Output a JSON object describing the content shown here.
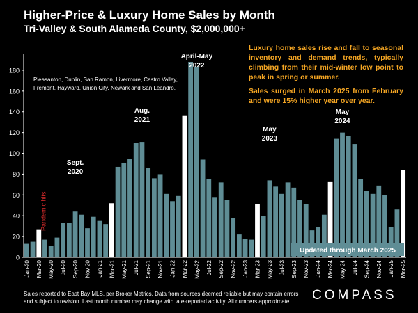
{
  "header": {
    "title": "Higher-Price & Luxury Home Sales by Month",
    "subtitle": "Tri-Valley & South Alameda County, $2,000,000+"
  },
  "callouts": {
    "seasonal": "Luxury home sales rise and fall to seasonal inventory and demand trends, typically climbing from their mid-winter low point to peak in spring or summer.",
    "march": "Sales surged in March 2025 from February and were 15% higher year over year."
  },
  "footer": {
    "note": "Sales reported to East Bay MLS, per Broker Metrics. Data from sources deemed reliable but may contain errors and subject to revision. Last month number may change with late-reported activity. All numbers approximate.",
    "logo": "COMPASS"
  },
  "colors": {
    "bar": "#5f8d95",
    "highlight": "#ffffff",
    "pandemic": "#d62b2b",
    "callout": "#f5a623",
    "updated_box": "#5f8d95"
  },
  "chart_data": {
    "type": "bar",
    "title": "Higher-Price & Luxury Home Sales by Month",
    "subtitle": "Tri-Valley & South Alameda County, $2,000,000+",
    "ylim": [
      0,
      190
    ],
    "yticks": [
      0,
      20,
      40,
      60,
      80,
      100,
      120,
      140,
      160,
      180
    ],
    "grid": false,
    "categories": [
      "Jan-20",
      "Feb-20",
      "Mar-20",
      "Apr-20",
      "May-20",
      "Jun-20",
      "Jul-20",
      "Aug-20",
      "Sep-20",
      "Oct-20",
      "Nov-20",
      "Dec-20",
      "Jan-21",
      "Feb-21",
      "Mar-21",
      "Apr-21",
      "May-21",
      "Jun-21",
      "Jul-21",
      "Aug-21",
      "Sep-21",
      "Oct-21",
      "Nov-21",
      "Dec-21",
      "Jan-22",
      "Feb-22",
      "Mar-22",
      "Apr-22",
      "May-22",
      "Jun-22",
      "Jul-22",
      "Aug-22",
      "Sep-22",
      "Oct-22",
      "Nov-22",
      "Dec-22",
      "Jan-23",
      "Feb-23",
      "Mar-23",
      "Apr-23",
      "May-23",
      "Jun-23",
      "Jul-23",
      "Aug-23",
      "Sep-23",
      "Oct-23",
      "Nov-23",
      "Dec-23",
      "Jan-24",
      "Feb-24",
      "Mar-24",
      "Apr-24",
      "May-24",
      "Jun-24",
      "Jul-24",
      "Aug-24",
      "Sep-24",
      "Oct-24",
      "Nov-24",
      "Dec-24",
      "Jan-25",
      "Feb-25",
      "Mar-25"
    ],
    "values": [
      13,
      15,
      27,
      17,
      11,
      19,
      33,
      33,
      44,
      41,
      28,
      39,
      35,
      32,
      52,
      87,
      91,
      95,
      110,
      111,
      86,
      76,
      80,
      61,
      54,
      59,
      136,
      188,
      183,
      94,
      75,
      58,
      72,
      55,
      38,
      22,
      18,
      17,
      51,
      40,
      74,
      68,
      61,
      72,
      67,
      55,
      51,
      26,
      29,
      41,
      73,
      114,
      120,
      117,
      109,
      75,
      64,
      61,
      69,
      60,
      29,
      46,
      84
    ],
    "highlight_months": [
      "Mar-20",
      "Mar-21",
      "Mar-22",
      "Mar-23",
      "Mar-24",
      "Mar-25"
    ],
    "x_tick_labels": [
      "Jan-20",
      "Mar-20",
      "May-20",
      "Jul-20",
      "Sep-20",
      "Nov-20",
      "Jan-21",
      "Mar-21",
      "May-21",
      "Jul-21",
      "Sep-21",
      "Nov-21",
      "Jan-22",
      "Mar-22",
      "May-22",
      "Jul-22",
      "Sep-22",
      "Nov-22",
      "Jan-23",
      "Mar-23",
      "May-23",
      "Jul-23",
      "Sep-23",
      "Nov-23",
      "Jan-24",
      "Mar-24",
      "May-24",
      "Jul-24",
      "Sep-24",
      "Nov-24",
      "Jan-25",
      "Mar-25"
    ],
    "annotations": [
      {
        "text": "Pandemic hits",
        "month": "Apr-20",
        "color": "red",
        "vertical": true
      },
      {
        "text": "Sept.\n2020",
        "month": "Sep-20"
      },
      {
        "text": "Aug.\n2021",
        "month": "Aug-21"
      },
      {
        "text": "April-May\n2022",
        "month": "May-22"
      },
      {
        "text": "May\n2023",
        "month": "May-23"
      },
      {
        "text": "May\n2024",
        "month": "May-24"
      }
    ],
    "region_note": "Pleasanton, Dublin, San Ramon, Livermore, Castro Valley, Fremont, Hayward, Union City, Newark and San Leandro.",
    "updated_label": "Updated through March 2025"
  }
}
